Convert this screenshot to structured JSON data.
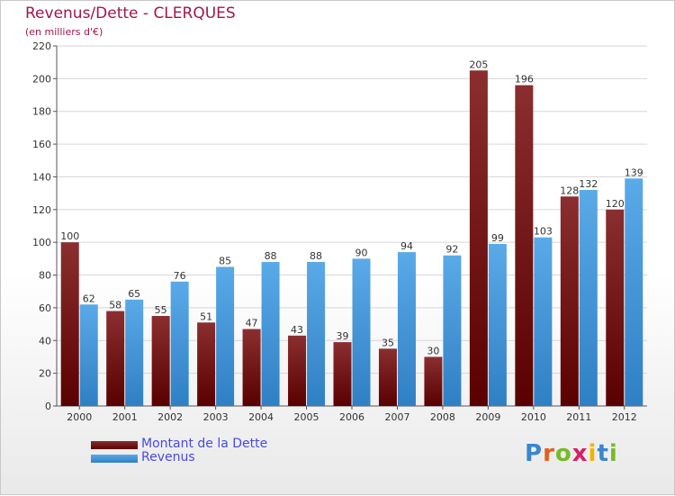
{
  "header": {
    "title": "Revenus/Dette - CLERQUES",
    "subtitle": "(en milliers d'€)"
  },
  "legend": {
    "items": [
      {
        "label": "Montant de la Dette",
        "color": "#6e1414"
      },
      {
        "label": "Revenus",
        "color": "#3d8fd6"
      }
    ]
  },
  "logo": {
    "text": "Proxiti",
    "letter_colors": [
      "#3a86cf",
      "#e85d1a",
      "#79b928",
      "#d81e66",
      "#f2b300",
      "#3a86cf",
      "#79b928"
    ]
  },
  "chart_data": {
    "type": "bar",
    "title": "Revenus/Dette - CLERQUES",
    "ylabel": "(en milliers d'€)",
    "xlabel": "",
    "ylim": [
      0,
      220
    ],
    "yticks": [
      0,
      20,
      40,
      60,
      80,
      100,
      120,
      140,
      160,
      180,
      200,
      220
    ],
    "grid": true,
    "legend_position": "bottom-left",
    "categories": [
      "2000",
      "2001",
      "2002",
      "2003",
      "2004",
      "2005",
      "2006",
      "2007",
      "2008",
      "2009",
      "2010",
      "2011",
      "2012"
    ],
    "series": [
      {
        "name": "Montant de la Dette",
        "color": "#6e1414",
        "values": [
          100,
          58,
          55,
          51,
          47,
          43,
          39,
          35,
          30,
          205,
          196,
          128,
          120
        ]
      },
      {
        "name": "Revenus",
        "color": "#3d8fd6",
        "values": [
          62,
          65,
          76,
          85,
          88,
          88,
          90,
          94,
          92,
          99,
          103,
          132,
          139
        ]
      }
    ]
  }
}
